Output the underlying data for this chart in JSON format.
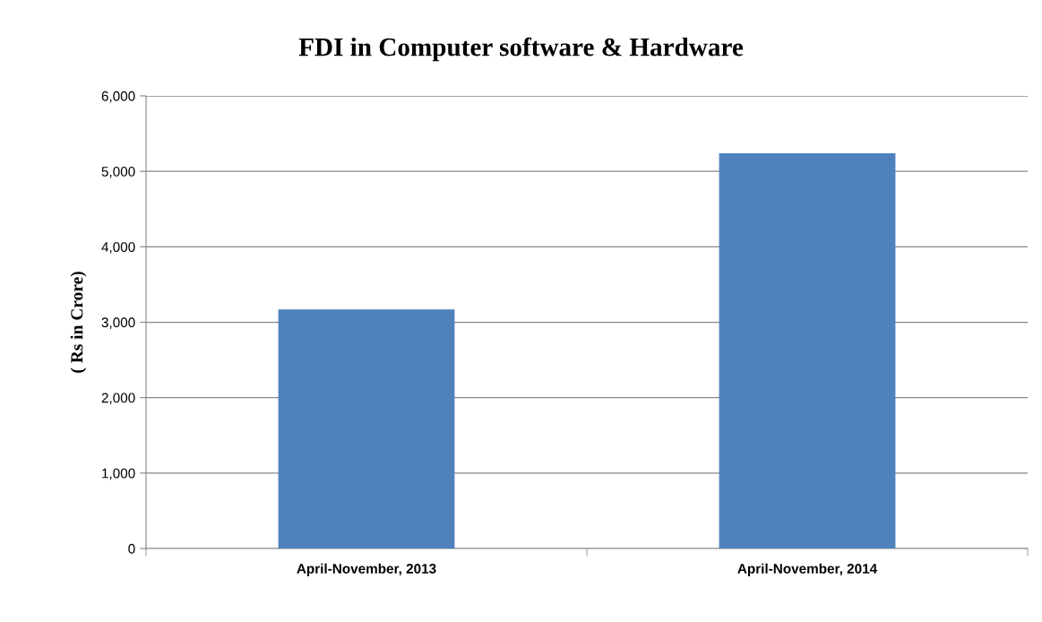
{
  "chart_data": {
    "type": "bar",
    "title": "FDI in Computer software & Hardware",
    "ylabel": "( Rs in Crore)",
    "categories": [
      "April-November, 2013",
      "April-November, 2014"
    ],
    "values": [
      3170,
      5240
    ],
    "color": "#4f81bd",
    "ylim": [
      0,
      6000
    ],
    "yticks": [
      {
        "value": 0,
        "label": "0"
      },
      {
        "value": 1000,
        "label": "1,000"
      },
      {
        "value": 2000,
        "label": "2,000"
      },
      {
        "value": 3000,
        "label": "3,000"
      },
      {
        "value": 4000,
        "label": "4,000"
      },
      {
        "value": 5000,
        "label": "5,000"
      },
      {
        "value": 6000,
        "label": "6,000"
      }
    ],
    "grid": "y",
    "legend": false
  }
}
